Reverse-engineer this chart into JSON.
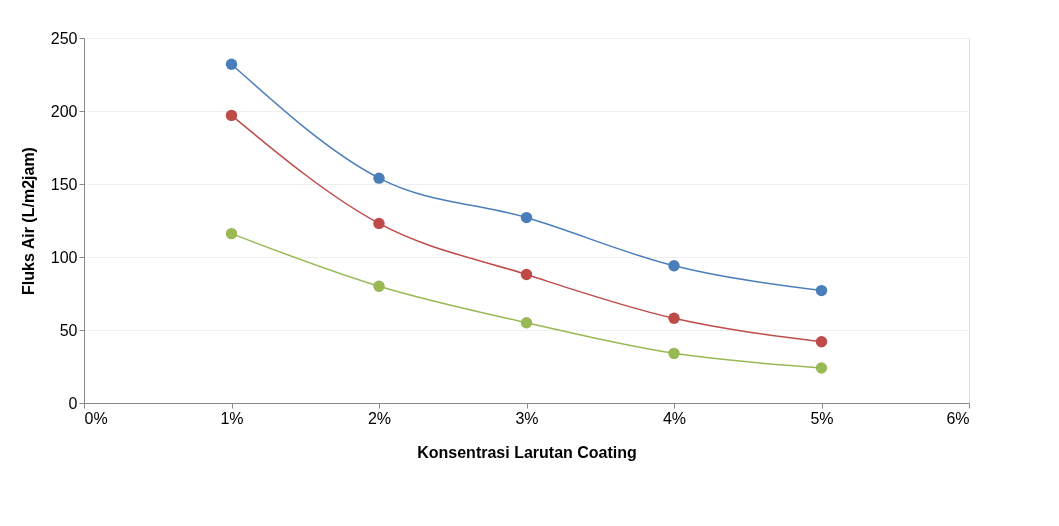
{
  "chart_data": {
    "type": "line",
    "xlabel": "Konsentrasi Larutan Coating",
    "ylabel": "Fluks Air (L/m2jam)",
    "x": [
      0.01,
      0.02,
      0.03,
      0.04,
      0.05
    ],
    "series": [
      {
        "color": "#4a7ebb",
        "values": [
          232,
          154,
          127,
          94,
          77
        ]
      },
      {
        "color": "#be4b48",
        "values": [
          197,
          123,
          88,
          58,
          42
        ]
      },
      {
        "color": "#98b954",
        "values": [
          116,
          80,
          55,
          34,
          24
        ]
      }
    ],
    "xlim": [
      0,
      0.06
    ],
    "xticks": [
      {
        "value": 0,
        "label": "0%"
      },
      {
        "value": 0.01,
        "label": "1%"
      },
      {
        "value": 0.02,
        "label": "2%"
      },
      {
        "value": 0.03,
        "label": "3%"
      },
      {
        "value": 0.04,
        "label": "4%"
      },
      {
        "value": 0.05,
        "label": "5%"
      },
      {
        "value": 0.06,
        "label": "6%"
      }
    ],
    "ylim": [
      0,
      250
    ],
    "yticks": [
      0,
      50,
      100,
      150,
      200,
      250
    ],
    "grid": "y",
    "legend": false,
    "marker": "circle",
    "line_style": "solid"
  }
}
